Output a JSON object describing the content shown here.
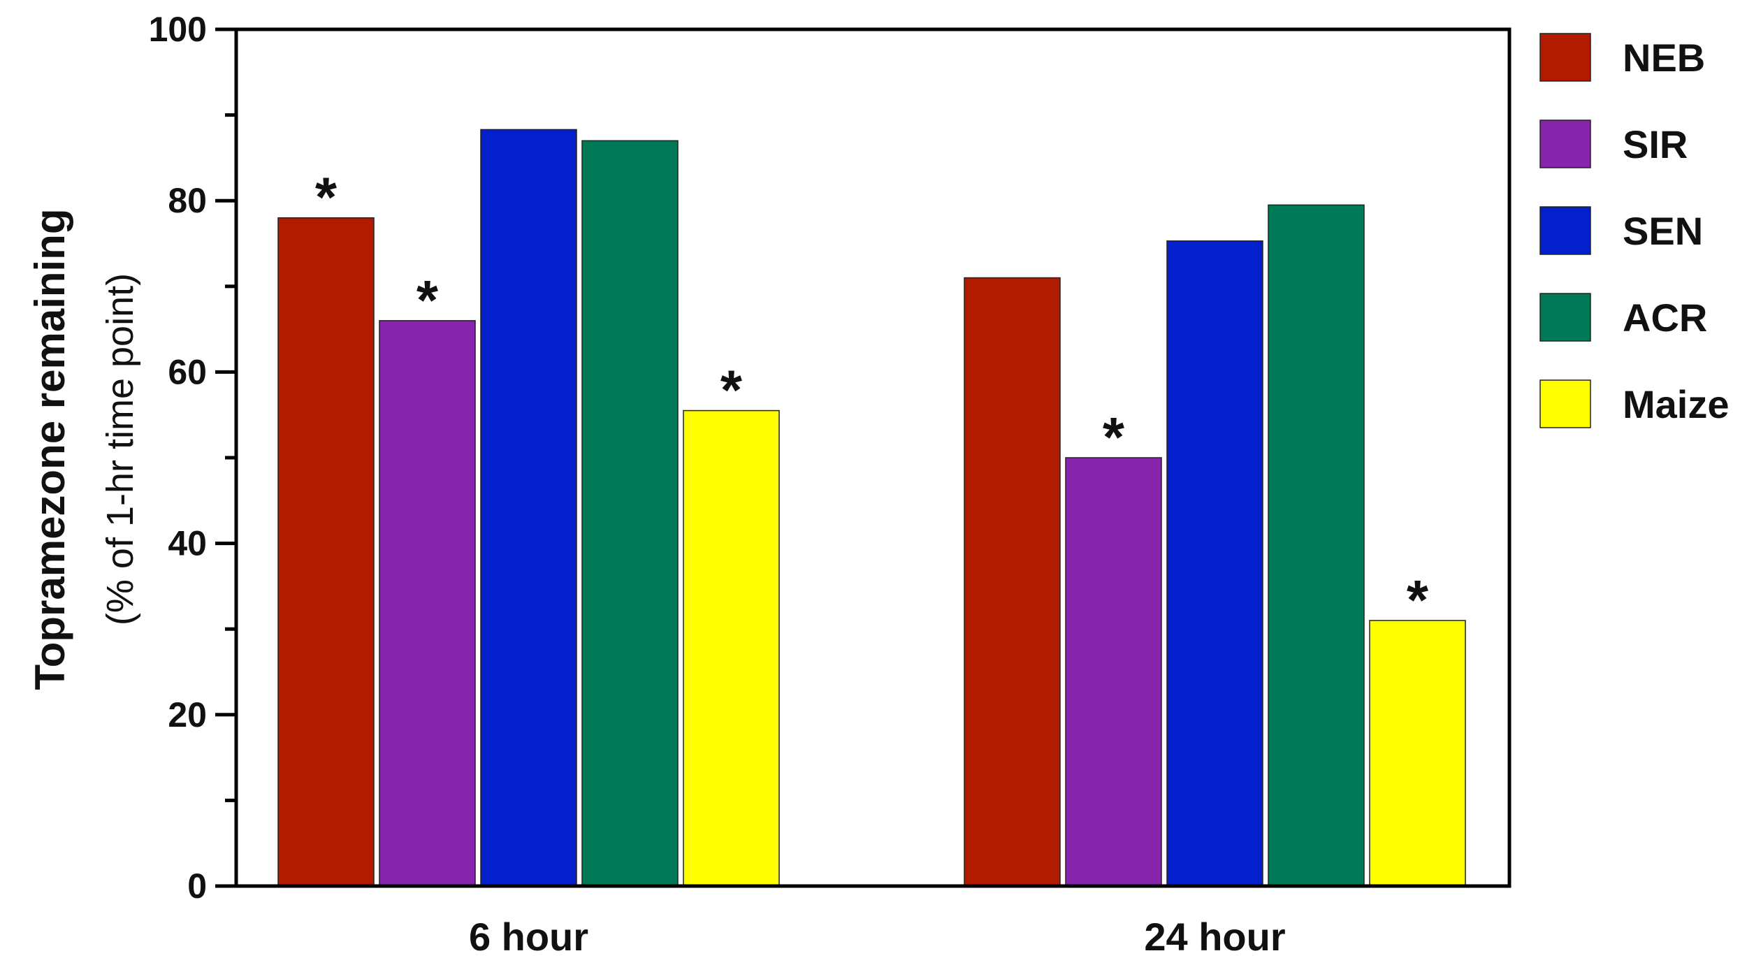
{
  "chart_data": {
    "type": "bar",
    "categories": [
      "6 hour",
      "24 hour"
    ],
    "series": [
      {
        "name": "NEB",
        "color": "#B31B00",
        "values": [
          78,
          71
        ]
      },
      {
        "name": "SIR",
        "color": "#8825AD",
        "values": [
          66,
          50
        ]
      },
      {
        "name": "SEN",
        "color": "#0320CC",
        "values": [
          88.3,
          75.3
        ]
      },
      {
        "name": "ACR",
        "color": "#007A56",
        "values": [
          87,
          79.5
        ]
      },
      {
        "name": "Maize",
        "color": "#FFFF00",
        "values": [
          55.5,
          31
        ]
      }
    ],
    "significant": [
      {
        "series": "NEB",
        "category": "6 hour",
        "mark": "*"
      },
      {
        "series": "SIR",
        "category": "6 hour",
        "mark": "*"
      },
      {
        "series": "Maize",
        "category": "6 hour",
        "mark": "*"
      },
      {
        "series": "SIR",
        "category": "24 hour",
        "mark": "*"
      },
      {
        "series": "Maize",
        "category": "24 hour",
        "mark": "*"
      }
    ],
    "ylabel": "Topramezone remaining",
    "ylabel_sub": "(% of 1-hr time point)",
    "xlabel": "",
    "ylim": [
      0,
      100
    ],
    "yticks": [
      0,
      20,
      40,
      60,
      80,
      100
    ],
    "grid": false,
    "legend_position": "right"
  }
}
